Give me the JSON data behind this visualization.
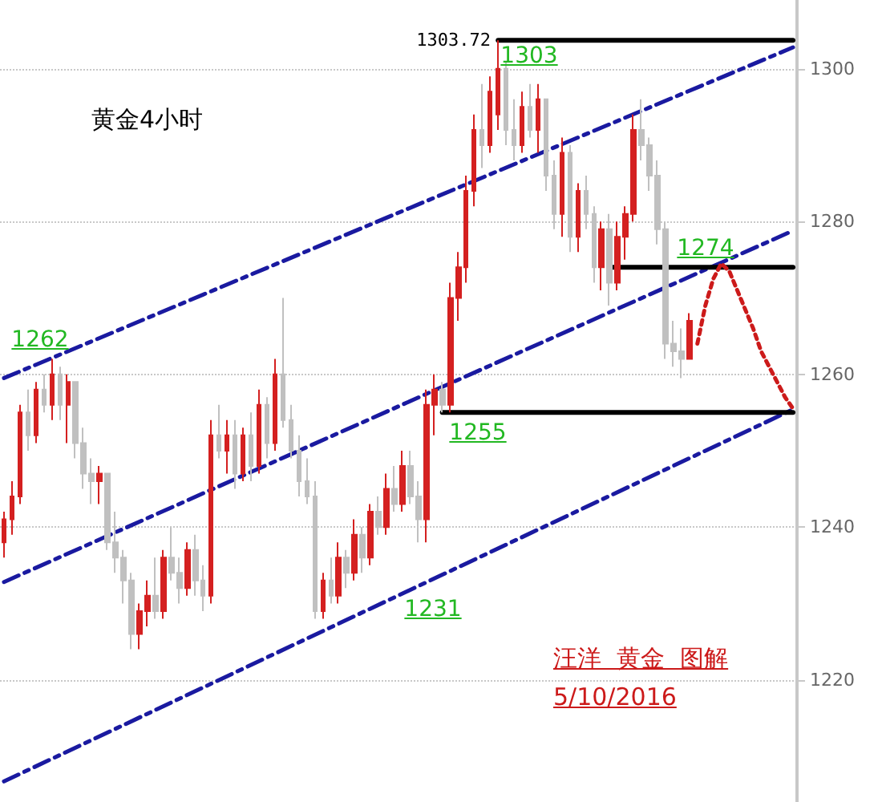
{
  "chart_data": {
    "type": "candlestick",
    "title": "黄金4小时",
    "categories": [
      null,
      null,
      null,
      null,
      null,
      null,
      null,
      null,
      null,
      null,
      null,
      null,
      null,
      null,
      null,
      null,
      null,
      null,
      null,
      null,
      null,
      null,
      null,
      null,
      null,
      null,
      null,
      null,
      null,
      null,
      null,
      null,
      null,
      null,
      null,
      null,
      null,
      null,
      null,
      null,
      null,
      null,
      null,
      null,
      null,
      null,
      null,
      null,
      null,
      null,
      null,
      null,
      null,
      null,
      null,
      null,
      null,
      null,
      null,
      null,
      null,
      null,
      null,
      null,
      null,
      null,
      null,
      null,
      null,
      null,
      null,
      null,
      null,
      null,
      null,
      null,
      null,
      null,
      null,
      null,
      null,
      null,
      null,
      null,
      null,
      null,
      null,
      null,
      null,
      null,
      null,
      null,
      null,
      null,
      null,
      null,
      null,
      null,
      null,
      null
    ],
    "ohlc": [
      [
        1238,
        1242,
        1236,
        1241
      ],
      [
        1241,
        1246,
        1239,
        1244
      ],
      [
        1244,
        1256,
        1243,
        1255
      ],
      [
        1255,
        1258,
        1250,
        1252
      ],
      [
        1252,
        1259,
        1251,
        1258
      ],
      [
        1258,
        1260,
        1255,
        1256
      ],
      [
        1256,
        1262,
        1254,
        1260
      ],
      [
        1260,
        1261,
        1254,
        1256
      ],
      [
        1256,
        1260,
        1251,
        1259
      ],
      [
        1259,
        1259,
        1249,
        1251
      ],
      [
        1251,
        1253,
        1245,
        1247
      ],
      [
        1247,
        1249,
        1243,
        1246
      ],
      [
        1246,
        1248,
        1243,
        1247
      ],
      [
        1247,
        1247,
        1237,
        1238
      ],
      [
        1238,
        1242,
        1234,
        1236
      ],
      [
        1236,
        1237,
        1230,
        1233
      ],
      [
        1233,
        1234,
        1224,
        1226
      ],
      [
        1226,
        1230,
        1224,
        1229
      ],
      [
        1229,
        1233,
        1227,
        1231
      ],
      [
        1231,
        1236,
        1228,
        1229
      ],
      [
        1229,
        1237,
        1228,
        1236
      ],
      [
        1236,
        1240,
        1233,
        1234
      ],
      [
        1234,
        1236,
        1230,
        1232
      ],
      [
        1232,
        1238,
        1231,
        1237
      ],
      [
        1237,
        1239,
        1231,
        1233
      ],
      [
        1233,
        1235,
        1229,
        1231
      ],
      [
        1231,
        1254,
        1230,
        1252
      ],
      [
        1252,
        1256,
        1249,
        1250
      ],
      [
        1250,
        1254,
        1247,
        1252
      ],
      [
        1252,
        1254,
        1245,
        1247
      ],
      [
        1247,
        1253,
        1246,
        1252
      ],
      [
        1252,
        1255,
        1246,
        1248
      ],
      [
        1248,
        1258,
        1247,
        1256
      ],
      [
        1256,
        1257,
        1249,
        1251
      ],
      [
        1251,
        1262,
        1250,
        1260
      ],
      [
        1260,
        1270,
        1253,
        1254
      ],
      [
        1254,
        1256,
        1249,
        1250
      ],
      [
        1250,
        1252,
        1244,
        1246
      ],
      [
        1246,
        1249,
        1243,
        1244
      ],
      [
        1244,
        1246,
        1228,
        1229
      ],
      [
        1229,
        1234,
        1228,
        1233
      ],
      [
        1233,
        1236,
        1230,
        1231
      ],
      [
        1231,
        1238,
        1230,
        1236
      ],
      [
        1236,
        1237,
        1232,
        1234
      ],
      [
        1234,
        1241,
        1233,
        1239
      ],
      [
        1239,
        1240,
        1234,
        1236
      ],
      [
        1236,
        1243,
        1235,
        1242
      ],
      [
        1242,
        1244,
        1239,
        1240
      ],
      [
        1240,
        1247,
        1239,
        1245
      ],
      [
        1245,
        1248,
        1242,
        1243
      ],
      [
        1243,
        1250,
        1242,
        1248
      ],
      [
        1248,
        1250,
        1243,
        1244
      ],
      [
        1244,
        1246,
        1238,
        1241
      ],
      [
        1241,
        1258,
        1238,
        1256
      ],
      [
        1256,
        1260,
        1252,
        1258
      ],
      [
        1258,
        1259,
        1255,
        1256
      ],
      [
        1256,
        1272,
        1255,
        1270
      ],
      [
        1270,
        1276,
        1267,
        1274
      ],
      [
        1274,
        1286,
        1272,
        1284
      ],
      [
        1284,
        1294,
        1282,
        1292
      ],
      [
        1292,
        1298,
        1287,
        1290
      ],
      [
        1290,
        1299,
        1289,
        1297
      ],
      [
        1294,
        1303.72,
        1292,
        1300
      ],
      [
        1300,
        1301,
        1290,
        1292
      ],
      [
        1292,
        1296,
        1288,
        1290
      ],
      [
        1290,
        1297,
        1289,
        1295
      ],
      [
        1295,
        1298,
        1291,
        1292
      ],
      [
        1292,
        1298,
        1289,
        1296
      ],
      [
        1296,
        1296,
        1284,
        1286
      ],
      [
        1286,
        1288,
        1279,
        1281
      ],
      [
        1281,
        1291,
        1278,
        1289
      ],
      [
        1289,
        1290,
        1276,
        1278
      ],
      [
        1278,
        1285,
        1276,
        1284
      ],
      [
        1284,
        1286,
        1279,
        1281
      ],
      [
        1281,
        1282,
        1272,
        1274
      ],
      [
        1274,
        1280,
        1271,
        1279
      ],
      [
        1279,
        1281,
        1269,
        1272
      ],
      [
        1272,
        1280,
        1271,
        1278
      ],
      [
        1278,
        1282,
        1275,
        1281
      ],
      [
        1281,
        1294,
        1280,
        1292
      ],
      [
        1292,
        1296,
        1288,
        1290
      ],
      [
        1290,
        1291,
        1284,
        1286
      ],
      [
        1286,
        1288,
        1277,
        1279
      ],
      [
        1279,
        1280,
        1262,
        1264
      ],
      [
        1264,
        1267,
        1261,
        1263
      ],
      [
        1263,
        1266,
        1259.5,
        1262
      ],
      [
        1262,
        1268,
        1262,
        1267
      ],
      null,
      null,
      null,
      null,
      null,
      null,
      null,
      null,
      null,
      null,
      null,
      null,
      null
    ],
    "colors": [
      "#d42020",
      "#d42020",
      "#d42020",
      "#c0c0c0",
      "#d42020",
      "#c0c0c0",
      "#d42020",
      "#c0c0c0",
      "#d42020",
      "#c0c0c0",
      "#c0c0c0",
      "#c0c0c0",
      "#d42020",
      "#c0c0c0",
      "#c0c0c0",
      "#c0c0c0",
      "#c0c0c0",
      "#d42020",
      "#d42020",
      "#c0c0c0",
      "#d42020",
      "#c0c0c0",
      "#c0c0c0",
      "#d42020",
      "#c0c0c0",
      "#c0c0c0",
      "#d42020",
      "#c0c0c0",
      "#d42020",
      "#c0c0c0",
      "#d42020",
      "#c0c0c0",
      "#d42020",
      "#c0c0c0",
      "#d42020",
      "#c0c0c0",
      "#c0c0c0",
      "#c0c0c0",
      "#c0c0c0",
      "#c0c0c0",
      "#d42020",
      "#c0c0c0",
      "#d42020",
      "#c0c0c0",
      "#d42020",
      "#c0c0c0",
      "#d42020",
      "#c0c0c0",
      "#d42020",
      "#c0c0c0",
      "#d42020",
      "#c0c0c0",
      "#c0c0c0",
      "#d42020",
      "#d42020",
      "#c0c0c0",
      "#d42020",
      "#d42020",
      "#d42020",
      "#d42020",
      "#c0c0c0",
      "#d42020",
      "#d42020",
      "#c0c0c0",
      "#c0c0c0",
      "#d42020",
      "#c0c0c0",
      "#d42020",
      "#c0c0c0",
      "#c0c0c0",
      "#d42020",
      "#c0c0c0",
      "#d42020",
      "#c0c0c0",
      "#c0c0c0",
      "#d42020",
      "#c0c0c0",
      "#d42020",
      "#d42020",
      "#d42020",
      "#c0c0c0",
      "#c0c0c0",
      "#c0c0c0",
      "#c0c0c0",
      "#c0c0c0",
      "#c0c0c0",
      "#d42020",
      null,
      null,
      null,
      null,
      null,
      null,
      null,
      null,
      null,
      null,
      null,
      null,
      null
    ],
    "series": [
      {
        "type": "line",
        "color": "#1a1aa0",
        "line_style": "dashed",
        "values": [
          1259.5,
          null,
          null,
          null,
          null,
          null,
          null,
          null,
          null,
          null,
          null,
          null,
          null,
          null,
          null,
          null,
          null,
          null,
          null,
          null,
          null,
          null,
          null,
          null,
          null,
          null,
          null,
          null,
          null,
          null,
          null,
          null,
          null,
          null,
          null,
          null,
          null,
          null,
          null,
          null,
          null,
          null,
          null,
          null,
          null,
          null,
          null,
          null,
          null,
          null,
          null,
          null,
          null,
          null,
          null,
          null,
          null,
          null,
          null,
          null,
          null,
          null,
          null,
          null,
          null,
          null,
          null,
          null,
          null,
          null,
          null,
          null,
          null,
          null,
          null,
          null,
          null,
          null,
          null,
          null,
          null,
          null,
          null,
          null,
          null,
          null,
          null,
          null,
          null,
          null,
          null,
          null,
          null,
          null,
          null,
          null,
          null,
          null,
          null,
          1302.8
        ]
      },
      {
        "type": "line",
        "color": "#1a1aa0",
        "line_style": "dashed",
        "values": [
          1232.8,
          null,
          null,
          null,
          null,
          null,
          null,
          null,
          null,
          null,
          null,
          null,
          null,
          null,
          null,
          null,
          null,
          null,
          null,
          null,
          null,
          null,
          null,
          null,
          null,
          null,
          null,
          null,
          null,
          null,
          null,
          null,
          null,
          null,
          null,
          null,
          null,
          null,
          null,
          null,
          null,
          null,
          null,
          null,
          null,
          null,
          null,
          null,
          null,
          null,
          null,
          null,
          null,
          null,
          null,
          null,
          null,
          null,
          null,
          null,
          null,
          null,
          null,
          null,
          null,
          null,
          null,
          null,
          null,
          null,
          null,
          null,
          null,
          null,
          null,
          null,
          null,
          null,
          null,
          null,
          null,
          null,
          null,
          null,
          null,
          null,
          null,
          null,
          null,
          null,
          null,
          null,
          null,
          null,
          null,
          null,
          null,
          null,
          null,
          1278.8
        ]
      },
      {
        "type": "line",
        "color": "#1a1aa0",
        "line_style": "dashed",
        "values": [
          1206.7,
          null,
          null,
          null,
          null,
          null,
          null,
          null,
          null,
          null,
          null,
          null,
          null,
          null,
          null,
          null,
          null,
          null,
          null,
          null,
          null,
          null,
          null,
          null,
          null,
          null,
          null,
          null,
          null,
          null,
          null,
          null,
          null,
          null,
          null,
          null,
          null,
          null,
          null,
          null,
          null,
          null,
          null,
          null,
          null,
          null,
          null,
          null,
          null,
          null,
          null,
          null,
          null,
          null,
          null,
          null,
          null,
          null,
          null,
          null,
          null,
          null,
          null,
          null,
          null,
          null,
          null,
          null,
          null,
          null,
          null,
          null,
          null,
          null,
          null,
          null,
          null,
          null,
          null,
          null,
          null,
          null,
          null,
          null,
          null,
          null,
          null,
          null,
          null,
          null,
          null,
          null,
          null,
          null,
          null,
          null,
          null,
          null,
          null,
          1255.4
        ]
      },
      {
        "type": "line",
        "color": "#000000",
        "line_style": "solid",
        "values": [
          null,
          null,
          null,
          null,
          null,
          null,
          null,
          null,
          null,
          null,
          null,
          null,
          null,
          null,
          null,
          null,
          null,
          null,
          null,
          null,
          null,
          null,
          null,
          null,
          null,
          null,
          null,
          null,
          null,
          null,
          null,
          null,
          null,
          null,
          null,
          null,
          null,
          null,
          null,
          null,
          null,
          null,
          null,
          null,
          null,
          null,
          null,
          null,
          null,
          null,
          null,
          null,
          null,
          null,
          null,
          null,
          null,
          null,
          null,
          null,
          null,
          null,
          1303.72,
          null,
          null,
          null,
          null,
          null,
          null,
          null,
          null,
          null,
          null,
          null,
          null,
          null,
          null,
          null,
          null,
          null,
          null,
          null,
          null,
          null,
          null,
          null,
          null,
          null,
          null,
          null,
          null,
          null,
          null,
          null,
          null,
          null,
          null,
          null,
          null,
          1303.72
        ]
      },
      {
        "type": "line",
        "color": "#000000",
        "line_style": "solid",
        "values": [
          null,
          null,
          null,
          null,
          null,
          null,
          null,
          null,
          null,
          null,
          null,
          null,
          null,
          null,
          null,
          null,
          null,
          null,
          null,
          null,
          null,
          null,
          null,
          null,
          null,
          null,
          null,
          null,
          null,
          null,
          null,
          null,
          null,
          null,
          null,
          null,
          null,
          null,
          null,
          null,
          null,
          null,
          null,
          null,
          null,
          null,
          null,
          null,
          null,
          null,
          null,
          null,
          null,
          null,
          null,
          null,
          null,
          null,
          null,
          null,
          null,
          null,
          null,
          null,
          null,
          null,
          null,
          null,
          null,
          null,
          null,
          null,
          null,
          null,
          null,
          null,
          1274,
          null,
          null,
          null,
          null,
          null,
          null,
          null,
          null,
          null,
          null,
          null,
          null,
          null,
          null,
          null,
          null,
          null,
          null,
          null,
          null,
          null,
          null,
          1274
        ]
      },
      {
        "type": "line",
        "color": "#000000",
        "line_style": "solid",
        "values": [
          null,
          null,
          null,
          null,
          null,
          null,
          null,
          null,
          null,
          null,
          null,
          null,
          null,
          null,
          null,
          null,
          null,
          null,
          null,
          null,
          null,
          null,
          null,
          null,
          null,
          null,
          null,
          null,
          null,
          null,
          null,
          null,
          null,
          null,
          null,
          null,
          null,
          null,
          null,
          null,
          null,
          null,
          null,
          null,
          null,
          null,
          null,
          null,
          null,
          null,
          null,
          null,
          null,
          null,
          null,
          1255,
          null,
          null,
          null,
          null,
          null,
          null,
          null,
          null,
          null,
          null,
          null,
          null,
          null,
          null,
          null,
          null,
          null,
          null,
          null,
          null,
          null,
          null,
          null,
          null,
          null,
          null,
          null,
          null,
          null,
          null,
          null,
          null,
          null,
          null,
          null,
          null,
          null,
          null,
          null,
          null,
          null,
          null,
          null,
          1255
        ]
      },
      {
        "type": "line",
        "color": "#cc1a1a",
        "line_style": "dotted",
        "values": [
          null,
          null,
          null,
          null,
          null,
          null,
          null,
          null,
          null,
          null,
          null,
          null,
          null,
          null,
          null,
          null,
          null,
          null,
          null,
          null,
          null,
          null,
          null,
          null,
          null,
          null,
          null,
          null,
          null,
          null,
          null,
          null,
          null,
          null,
          null,
          null,
          null,
          null,
          null,
          null,
          null,
          null,
          null,
          null,
          null,
          null,
          null,
          null,
          null,
          null,
          null,
          null,
          null,
          null,
          null,
          null,
          null,
          null,
          null,
          null,
          null,
          null,
          null,
          null,
          null,
          null,
          null,
          null,
          null,
          null,
          null,
          null,
          null,
          null,
          null,
          null,
          null,
          null,
          null,
          null,
          null,
          null,
          null,
          null,
          null,
          null,
          null,
          1264,
          1269,
          1272.5,
          1274.5,
          1273.5,
          1271,
          1268.5,
          1266,
          1263,
          1261,
          1259,
          1257,
          1255.5
        ]
      }
    ],
    "ylim": [
      1204,
      1309
    ],
    "yticks": [
      1220,
      1240,
      1260,
      1280,
      1300
    ],
    "tick_labels": "y",
    "grid": "y",
    "annotations": [
      "1303.72",
      "1262",
      "1303",
      "1274",
      "1255",
      "1231",
      "汪洋  黄金  图解",
      "5/10/2016"
    ]
  }
}
